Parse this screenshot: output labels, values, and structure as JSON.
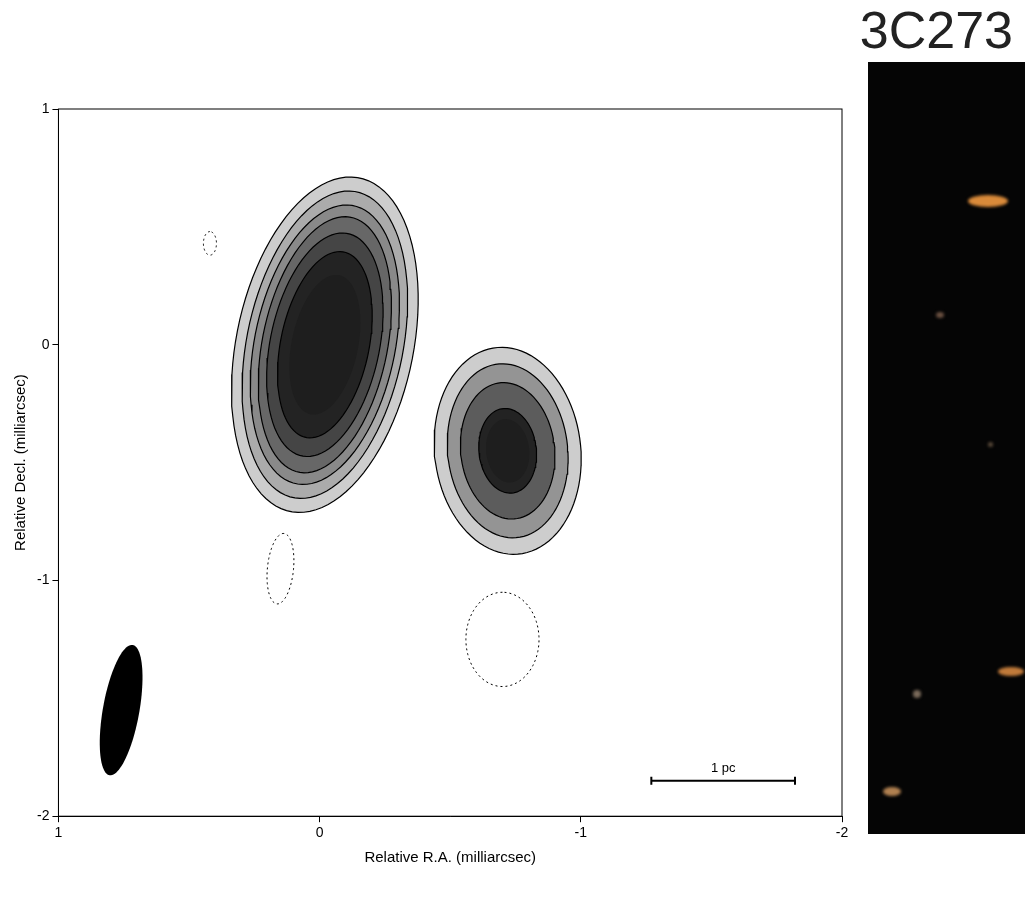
{
  "chart_data": {
    "type": "contour",
    "title": "3C273",
    "x_label": "Relative R.A. (milliarcsec)",
    "y_label": "Relative Decl. (milliarcsec)",
    "xlim": [
      1,
      -2
    ],
    "ylim": [
      -2,
      1
    ],
    "xticks": [
      1,
      0,
      -1,
      -2
    ],
    "yticks": [
      -2,
      -1,
      0,
      1
    ],
    "components": [
      {
        "center": [
          -0.02,
          0.0
        ],
        "angle": -10,
        "contours": [
          [
            0.72,
            0.34
          ],
          [
            0.66,
            0.3
          ],
          [
            0.6,
            0.27
          ],
          [
            0.55,
            0.24
          ],
          [
            0.48,
            0.21
          ],
          [
            0.4,
            0.17
          ]
        ]
      },
      {
        "center": [
          -0.72,
          -0.45
        ],
        "angle": 5,
        "contours": [
          [
            0.44,
            0.28
          ],
          [
            0.37,
            0.23
          ],
          [
            0.29,
            0.18
          ],
          [
            0.18,
            0.11
          ]
        ]
      }
    ],
    "negative_contours": {
      "line_style": "dotted",
      "ellipses": [
        {
          "center": [
            0.42,
            0.43
          ],
          "axes": [
            0.05,
            0.025
          ],
          "angle": 0
        },
        {
          "center": [
            0.15,
            -0.95
          ],
          "axes": [
            0.15,
            0.05
          ],
          "angle": -5
        },
        {
          "center": [
            -0.7,
            -1.25
          ],
          "axes": [
            0.2,
            0.14
          ],
          "angle": 0
        }
      ]
    },
    "beam": {
      "center": [
        0.76,
        -1.55
      ],
      "axes": [
        0.28,
        0.07
      ],
      "angle": -9
    },
    "scale_bar": {
      "label": "1 pc",
      "x": [
        -1.27,
        -1.82
      ],
      "y": -1.85
    }
  }
}
